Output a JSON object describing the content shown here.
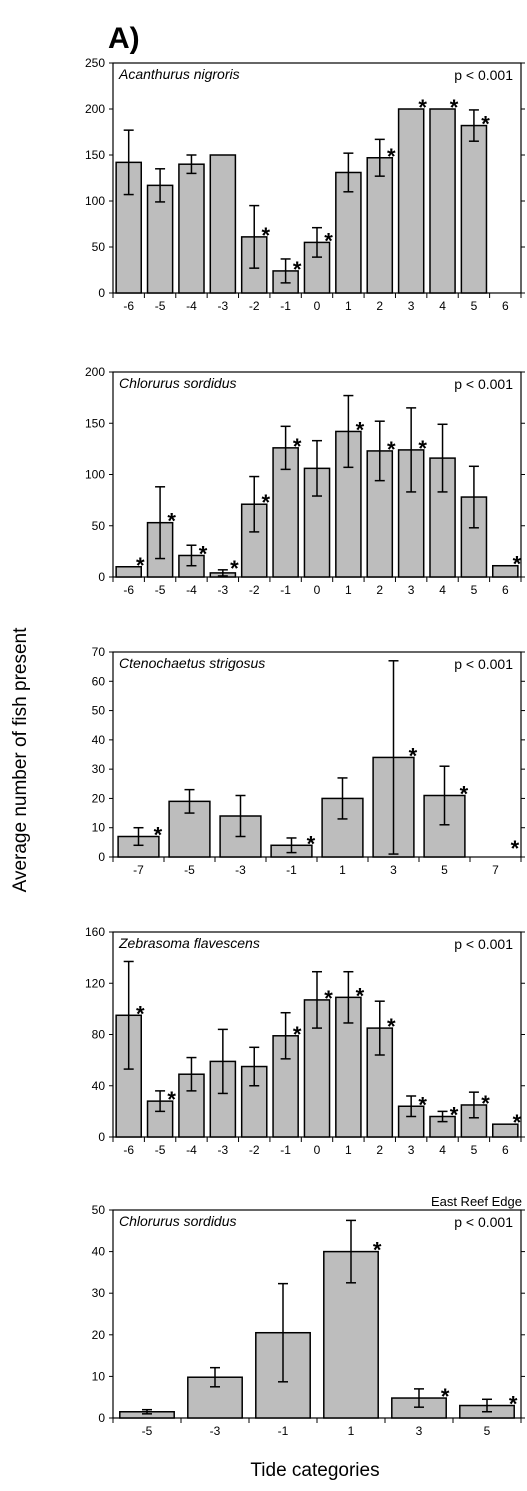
{
  "figure": {
    "panel_label": "A)",
    "ylabel": "Average number of fish present",
    "xlabel": "Tide categories"
  },
  "style": {
    "bar_fill": "#bdbdbd",
    "bar_stroke": "#000000",
    "axis_color": "#000000"
  },
  "chart_data": [
    {
      "type": "bar",
      "species": "Acanthurus nigroris",
      "pvalue": "p < 0.001",
      "note": "",
      "categories": [
        "-6",
        "-5",
        "-4",
        "-3",
        "-2",
        "-1",
        "0",
        "1",
        "2",
        "3",
        "4",
        "5",
        "6"
      ],
      "values": [
        142,
        117,
        140,
        150,
        61,
        24,
        55,
        131,
        147,
        200,
        200,
        182,
        0
      ],
      "errors": [
        35,
        18,
        10,
        0,
        34,
        13,
        16,
        21,
        20,
        0,
        0,
        17,
        0
      ],
      "significant": [
        false,
        false,
        false,
        false,
        true,
        true,
        true,
        false,
        true,
        true,
        true,
        true,
        false
      ],
      "yticks": [
        0,
        50,
        100,
        150,
        200,
        250
      ],
      "ylim": [
        0,
        250
      ]
    },
    {
      "type": "bar",
      "species": "Chlorurus sordidus",
      "pvalue": "p < 0.001",
      "note": "",
      "categories": [
        "-6",
        "-5",
        "-4",
        "-3",
        "-2",
        "-1",
        "0",
        "1",
        "2",
        "3",
        "4",
        "5",
        "6"
      ],
      "values": [
        10,
        53,
        21,
        4,
        71,
        126,
        106,
        142,
        123,
        124,
        116,
        78,
        11
      ],
      "errors": [
        0,
        35,
        10,
        3,
        27,
        21,
        27,
        35,
        29,
        41,
        33,
        30,
        0
      ],
      "significant": [
        true,
        true,
        true,
        true,
        true,
        true,
        false,
        true,
        true,
        true,
        false,
        false,
        true
      ],
      "yticks": [
        0,
        50,
        100,
        150,
        200
      ],
      "ylim": [
        0,
        200
      ]
    },
    {
      "type": "bar",
      "species": "Ctenochaetus strigosus",
      "pvalue": "p < 0.001",
      "note": "",
      "categories": [
        "-7",
        "-5",
        "-3",
        "-1",
        "1",
        "3",
        "5",
        "7"
      ],
      "values": [
        7,
        19,
        14,
        4,
        20,
        34,
        21,
        0
      ],
      "errors": [
        3,
        4,
        7,
        2.5,
        7,
        33,
        10,
        0
      ],
      "significant": [
        true,
        false,
        false,
        true,
        false,
        true,
        true,
        true
      ],
      "yticks": [
        0,
        10,
        20,
        30,
        40,
        50,
        60,
        70
      ],
      "ylim": [
        0,
        70
      ]
    },
    {
      "type": "bar",
      "species": "Zebrasoma flavescens",
      "pvalue": "p < 0.001",
      "note": "",
      "categories": [
        "-6",
        "-5",
        "-4",
        "-3",
        "-2",
        "-1",
        "0",
        "1",
        "2",
        "3",
        "4",
        "5",
        "6"
      ],
      "values": [
        95,
        28,
        49,
        59,
        55,
        79,
        107,
        109,
        85,
        24,
        16,
        25,
        10
      ],
      "errors": [
        42,
        8,
        13,
        25,
        15,
        18,
        22,
        20,
        21,
        8,
        4,
        10,
        0
      ],
      "significant": [
        true,
        true,
        false,
        false,
        false,
        true,
        true,
        true,
        true,
        true,
        true,
        true,
        true
      ],
      "yticks": [
        0,
        40,
        80,
        120,
        160
      ],
      "ylim": [
        0,
        160
      ]
    },
    {
      "type": "bar",
      "species": "Chlorurus sordidus",
      "pvalue": "p < 0.001",
      "note": "East Reef Edge",
      "categories": [
        "-5",
        "-3",
        "-1",
        "1",
        "3",
        "5"
      ],
      "values": [
        1.5,
        9.8,
        20.5,
        40,
        4.8,
        3
      ],
      "errors": [
        0.5,
        2.3,
        11.8,
        7.5,
        2.2,
        1.5
      ],
      "significant": [
        false,
        false,
        false,
        true,
        true,
        true
      ],
      "yticks": [
        0,
        10,
        20,
        30,
        40,
        50
      ],
      "ylim": [
        0,
        50
      ]
    }
  ]
}
